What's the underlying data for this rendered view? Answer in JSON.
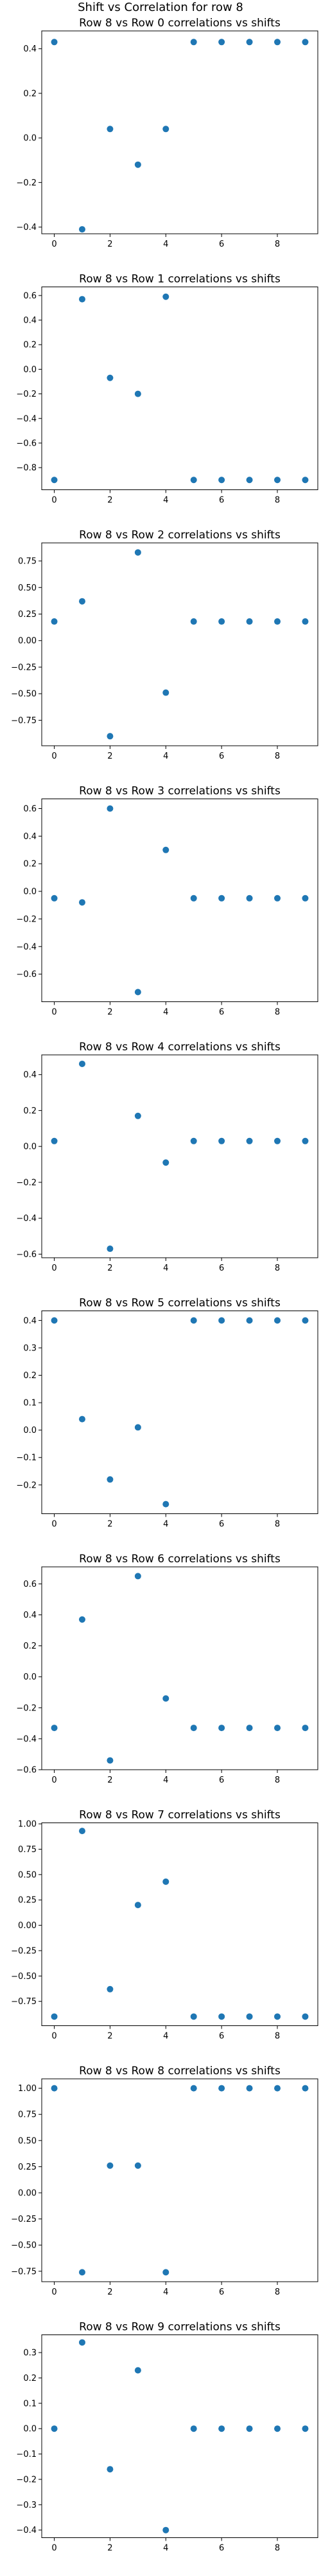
{
  "suptitle": "Shift vs Correlation for row 8",
  "colors": {
    "points": "#1f77b4",
    "axes": "#000000"
  },
  "chart_data": [
    {
      "type": "scatter",
      "title": "Row 8 vs Row 0 correlations vs shifts",
      "x": [
        0,
        1,
        2,
        3,
        4,
        5,
        6,
        7,
        8,
        9
      ],
      "y": [
        0.43,
        -0.41,
        0.04,
        -0.12,
        0.04,
        0.43,
        0.43,
        0.43,
        0.43,
        0.43
      ],
      "ylim": [
        -0.43,
        0.48
      ],
      "yticks": [
        -0.4,
        -0.2,
        0.0,
        0.2,
        0.4
      ],
      "ytick_labels": [
        "−0.4",
        "−0.2",
        "0.0",
        "0.2",
        "0.4"
      ]
    },
    {
      "type": "scatter",
      "title": "Row 8 vs Row 1 correlations vs shifts",
      "x": [
        0,
        1,
        2,
        3,
        4,
        5,
        6,
        7,
        8,
        9
      ],
      "y": [
        -0.9,
        0.57,
        -0.07,
        -0.2,
        0.59,
        -0.9,
        -0.9,
        -0.9,
        -0.9,
        -0.9
      ],
      "ylim": [
        -0.98,
        0.67
      ],
      "yticks": [
        -0.8,
        -0.6,
        -0.4,
        -0.2,
        0.0,
        0.2,
        0.4,
        0.6
      ],
      "ytick_labels": [
        "−0.8",
        "−0.6",
        "−0.4",
        "−0.2",
        "0.0",
        "0.2",
        "0.4",
        "0.6"
      ]
    },
    {
      "type": "scatter",
      "title": "Row 8 vs Row 2 correlations vs shifts",
      "x": [
        0,
        1,
        2,
        3,
        4,
        5,
        6,
        7,
        8,
        9
      ],
      "y": [
        0.18,
        0.37,
        -0.9,
        0.83,
        -0.49,
        0.18,
        0.18,
        0.18,
        0.18,
        0.18
      ],
      "ylim": [
        -0.99,
        0.92
      ],
      "yticks": [
        -0.75,
        -0.5,
        -0.25,
        0.0,
        0.25,
        0.5,
        0.75
      ],
      "ytick_labels": [
        "−0.75",
        "−0.50",
        "−0.25",
        "0.00",
        "0.25",
        "0.50",
        "0.75"
      ]
    },
    {
      "type": "scatter",
      "title": "Row 8 vs Row 3 correlations vs shifts",
      "x": [
        0,
        1,
        2,
        3,
        4,
        5,
        6,
        7,
        8,
        9
      ],
      "y": [
        -0.05,
        -0.08,
        0.6,
        -0.73,
        0.3,
        -0.05,
        -0.05,
        -0.05,
        -0.05,
        -0.05
      ],
      "ylim": [
        -0.8,
        0.67
      ],
      "yticks": [
        -0.6,
        -0.4,
        -0.2,
        0.0,
        0.2,
        0.4,
        0.6
      ],
      "ytick_labels": [
        "−0.6",
        "−0.4",
        "−0.2",
        "0.0",
        "0.2",
        "0.4",
        "0.6"
      ]
    },
    {
      "type": "scatter",
      "title": "Row 8 vs Row 4 correlations vs shifts",
      "x": [
        0,
        1,
        2,
        3,
        4,
        5,
        6,
        7,
        8,
        9
      ],
      "y": [
        0.03,
        0.46,
        -0.57,
        0.17,
        -0.09,
        0.03,
        0.03,
        0.03,
        0.03,
        0.03
      ],
      "ylim": [
        -0.62,
        0.51
      ],
      "yticks": [
        -0.6,
        -0.4,
        -0.2,
        0.0,
        0.2,
        0.4
      ],
      "ytick_labels": [
        "−0.6",
        "−0.4",
        "−0.2",
        "0.0",
        "0.2",
        "0.4"
      ]
    },
    {
      "type": "scatter",
      "title": "Row 8 vs Row 5 correlations vs shifts",
      "x": [
        0,
        1,
        2,
        3,
        4,
        5,
        6,
        7,
        8,
        9
      ],
      "y": [
        0.4,
        0.04,
        -0.18,
        0.01,
        -0.27,
        0.4,
        0.4,
        0.4,
        0.4,
        0.4
      ],
      "ylim": [
        -0.305,
        0.435
      ],
      "yticks": [
        -0.2,
        -0.1,
        0.0,
        0.1,
        0.2,
        0.3,
        0.4
      ],
      "ytick_labels": [
        "−0.2",
        "−0.1",
        "0.0",
        "0.1",
        "0.2",
        "0.3",
        "0.4"
      ]
    },
    {
      "type": "scatter",
      "title": "Row 8 vs Row 6 correlations vs shifts",
      "x": [
        0,
        1,
        2,
        3,
        4,
        5,
        6,
        7,
        8,
        9
      ],
      "y": [
        -0.33,
        0.37,
        -0.54,
        0.65,
        -0.14,
        -0.33,
        -0.33,
        -0.33,
        -0.33,
        -0.33
      ],
      "ylim": [
        -0.6,
        0.71
      ],
      "yticks": [
        -0.6,
        -0.4,
        -0.2,
        0.0,
        0.2,
        0.4,
        0.6
      ],
      "ytick_labels": [
        "−0.6",
        "−0.4",
        "−0.2",
        "0.0",
        "0.2",
        "0.4",
        "0.6"
      ]
    },
    {
      "type": "scatter",
      "title": "Row 8 vs Row 7 correlations vs shifts",
      "x": [
        0,
        1,
        2,
        3,
        4,
        5,
        6,
        7,
        8,
        9
      ],
      "y": [
        -0.9,
        0.93,
        -0.63,
        0.2,
        0.43,
        -0.9,
        -0.9,
        -0.9,
        -0.9,
        -0.9
      ],
      "ylim": [
        -0.99,
        1.01
      ],
      "yticks": [
        -0.75,
        -0.5,
        -0.25,
        0.0,
        0.25,
        0.5,
        0.75,
        1.0
      ],
      "ytick_labels": [
        "−0.75",
        "−0.50",
        "−0.25",
        "0.00",
        "0.25",
        "0.50",
        "0.75",
        "1.00"
      ]
    },
    {
      "type": "scatter",
      "title": "Row 8 vs Row 8 correlations vs shifts",
      "x": [
        0,
        1,
        2,
        3,
        4,
        5,
        6,
        7,
        8,
        9
      ],
      "y": [
        1.0,
        -0.76,
        0.26,
        0.26,
        -0.76,
        1.0,
        1.0,
        1.0,
        1.0,
        1.0
      ],
      "ylim": [
        -0.85,
        1.09
      ],
      "yticks": [
        -0.75,
        -0.5,
        -0.25,
        0.0,
        0.25,
        0.5,
        0.75,
        1.0
      ],
      "ytick_labels": [
        "−0.75",
        "−0.50",
        "−0.25",
        "0.00",
        "0.25",
        "0.50",
        "0.75",
        "1.00"
      ]
    },
    {
      "type": "scatter",
      "title": "Row 8 vs Row 9 correlations vs shifts",
      "x": [
        0,
        1,
        2,
        3,
        4,
        5,
        6,
        7,
        8,
        9
      ],
      "y": [
        0.0,
        0.34,
        -0.16,
        0.23,
        -0.4,
        0.0,
        0.0,
        0.0,
        0.0,
        0.0
      ],
      "ylim": [
        -0.43,
        0.37
      ],
      "yticks": [
        -0.4,
        -0.3,
        -0.2,
        -0.1,
        0.0,
        0.1,
        0.2,
        0.3
      ],
      "ytick_labels": [
        "−0.4",
        "−0.3",
        "−0.2",
        "−0.1",
        "0.0",
        "0.1",
        "0.2",
        "0.3"
      ]
    }
  ],
  "shared_x": {
    "xlim": [
      -0.45,
      9.45
    ],
    "xticks": [
      0,
      2,
      4,
      6,
      8
    ],
    "xtick_labels": [
      "0",
      "2",
      "4",
      "6",
      "8"
    ]
  }
}
